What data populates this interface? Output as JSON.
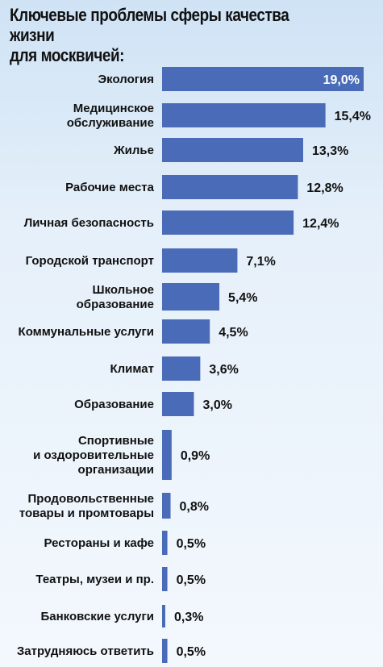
{
  "chart_data": {
    "type": "bar",
    "orientation": "horizontal",
    "title": "Ключевые проблемы сферы качества жизни\nдля москвичей:",
    "bar_color": "#4a6cb8",
    "categories": [
      "Экология",
      "Медицинское\nобслуживание",
      "Жилье",
      "Рабочие места",
      "Личная безопасность",
      "Городской транспорт",
      "Школьное\nобразование",
      "Коммунальные услуги",
      "Климат",
      "Образование",
      "Спортивные\nи оздоровительные\nорганизации",
      "Продовольственные\nтовары и промтовары",
      "Рестораны и кафе",
      "Театры, музеи и пр.",
      "Банковские услуги",
      "Затрудняюсь ответить"
    ],
    "values": [
      19.0,
      15.4,
      13.3,
      12.8,
      12.4,
      7.1,
      5.4,
      4.5,
      3.6,
      3.0,
      0.9,
      0.8,
      0.5,
      0.5,
      0.3,
      0.5
    ],
    "value_labels": [
      "19,0%",
      "15,4%",
      "13,3%",
      "12,8%",
      "12,4%",
      "7,1%",
      "5,4%",
      "4,5%",
      "3,6%",
      "3,0%",
      "0,9%",
      "0,8%",
      "0,5%",
      "0,5%",
      "0,3%",
      "0,5%"
    ],
    "xlim": [
      0,
      19.0
    ],
    "grid": false,
    "legend": "none"
  }
}
